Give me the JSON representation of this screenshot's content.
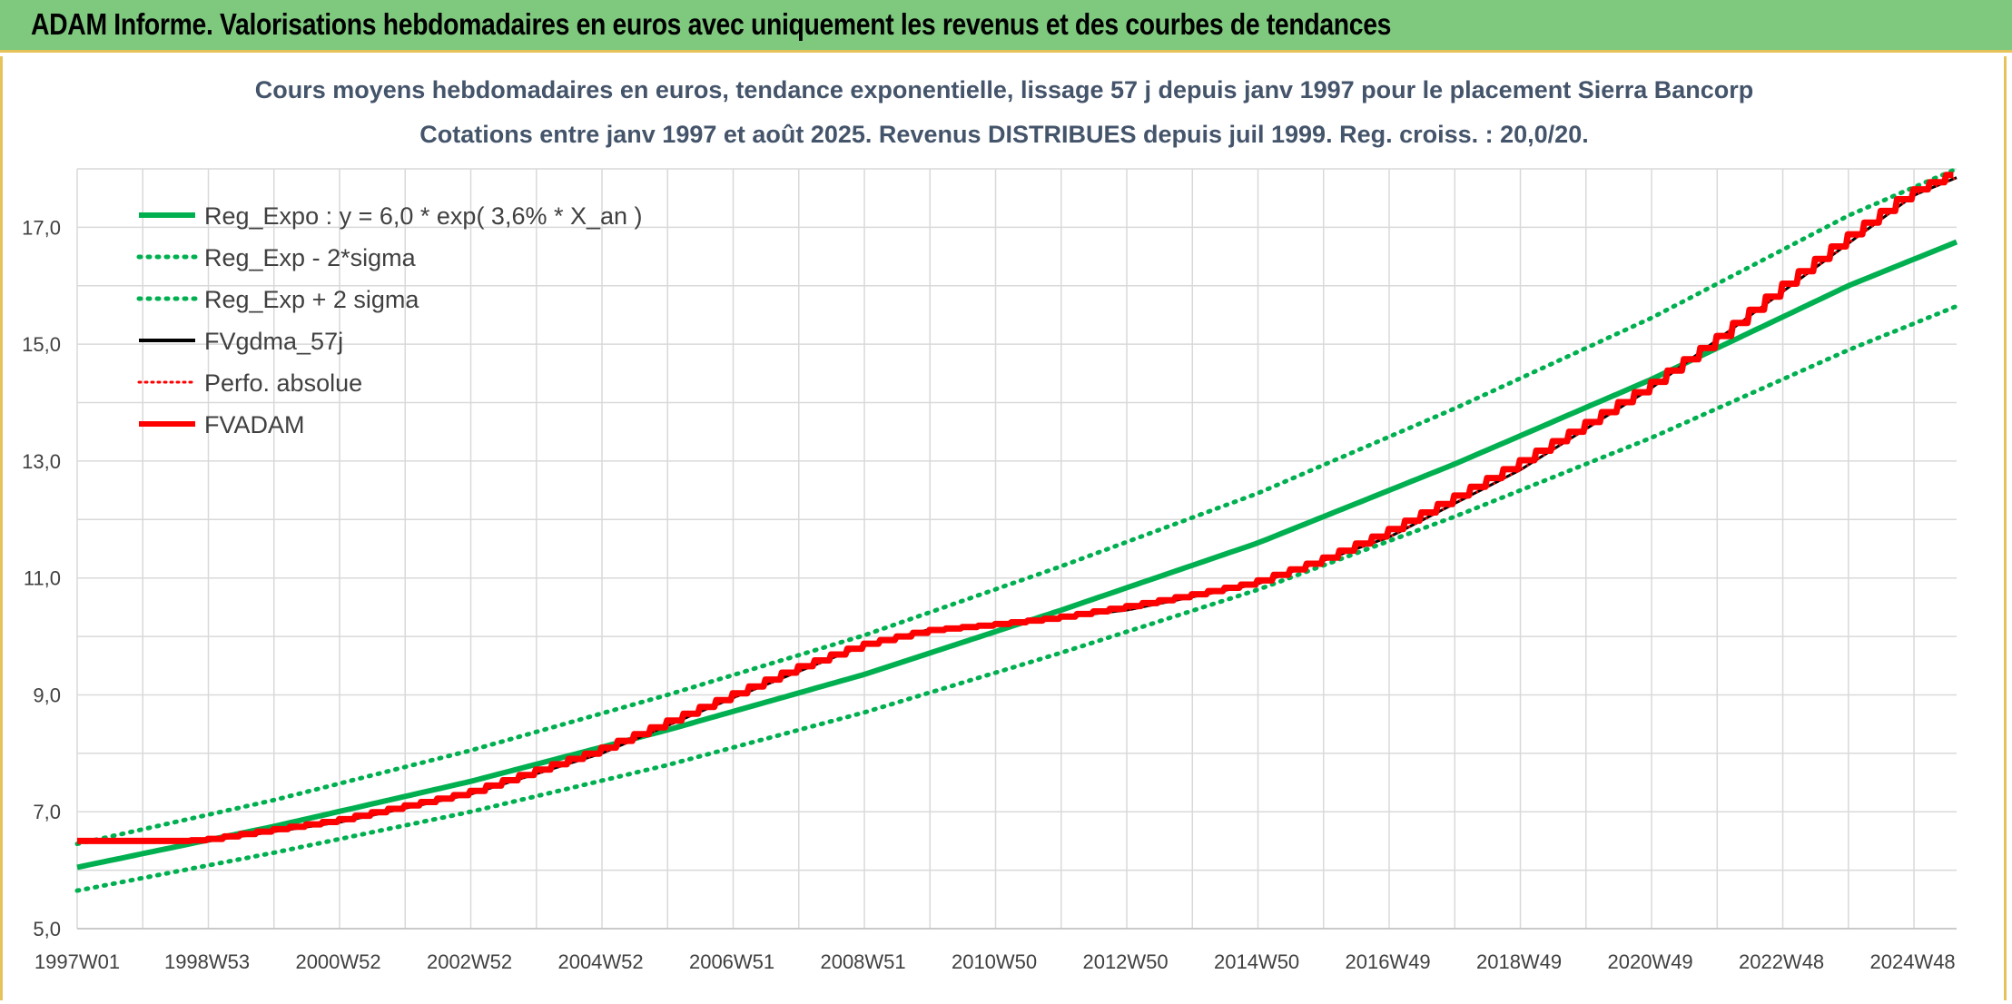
{
  "header": {
    "title": "ADAM Informe. Valorisations hebdomadaires en euros avec uniquement les revenus et des courbes de tendances"
  },
  "colors": {
    "banner": "#7fc97f",
    "green": "#00b050",
    "red": "#ff0000",
    "black": "#000000"
  },
  "chart_data": {
    "type": "line",
    "title": "Cours moyens hebdomadaires en euros, tendance exponentielle, lissage 57 j depuis janv 1997 pour le placement Sierra Bancorp",
    "subtitle": "Cotations entre janv 1997 et août 2025. Revenus DISTRIBUES depuis juil 1999. Reg. croiss. : 20,0/20.",
    "xlabel": "",
    "ylabel": "",
    "x_start_year": 1997.0,
    "x_end_year": 2025.65,
    "ylim": [
      5.0,
      18.0
    ],
    "y_ticks": [
      "5,0",
      "7,0",
      "9,0",
      "11,0",
      "13,0",
      "15,0",
      "17,0"
    ],
    "x_tick_labels": [
      "1997W01",
      "1998W53",
      "2000W52",
      "2002W52",
      "2004W52",
      "2006W51",
      "2008W51",
      "2010W50",
      "2012W50",
      "2014W50",
      "2016W49",
      "2018W49",
      "2020W49",
      "2022W48",
      "2024W48"
    ],
    "grid": true,
    "legend_position": "top-left",
    "series": [
      {
        "name": "Reg_Expo : y = 6,0 * exp( 3,6% *  X_an )",
        "style": "solid",
        "color": "#00b050",
        "x": [
          1997.0,
          2000.0,
          2003.0,
          2006.0,
          2009.0,
          2012.0,
          2015.0,
          2018.0,
          2021.0,
          2024.0,
          2025.65
        ],
        "values": [
          6.05,
          6.75,
          7.52,
          8.4,
          9.35,
          10.45,
          11.6,
          12.95,
          14.4,
          16.0,
          16.75
        ]
      },
      {
        "name": "Reg_Exp - 2*sigma",
        "style": "dotted",
        "color": "#00b050",
        "x": [
          1997.0,
          2000.0,
          2003.0,
          2006.0,
          2009.0,
          2012.0,
          2015.0,
          2018.0,
          2021.0,
          2024.0,
          2025.65
        ],
        "values": [
          5.65,
          6.3,
          7.0,
          7.8,
          8.7,
          9.72,
          10.8,
          12.05,
          13.4,
          14.9,
          15.65
        ]
      },
      {
        "name": "Reg_Exp + 2 sigma",
        "style": "dotted",
        "color": "#00b050",
        "x": [
          1997.0,
          2000.0,
          2003.0,
          2006.0,
          2009.0,
          2012.0,
          2015.0,
          2018.0,
          2021.0,
          2024.0,
          2025.65
        ],
        "values": [
          6.45,
          7.2,
          8.05,
          9.0,
          10.02,
          11.2,
          12.45,
          13.9,
          15.45,
          17.2,
          18.0
        ]
      },
      {
        "name": "FVgdma_57j",
        "style": "solid",
        "color": "#000000",
        "x": [
          1997.0,
          1999.0,
          2001.0,
          2003.0,
          2005.0,
          2007.0,
          2009.0,
          2010.0,
          2011.0,
          2013.0,
          2015.0,
          2017.0,
          2019.0,
          2021.0,
          2023.0,
          2025.0,
          2025.65
        ],
        "values": [
          6.5,
          6.5,
          6.82,
          7.3,
          8.0,
          8.95,
          9.85,
          10.12,
          10.2,
          10.45,
          10.9,
          11.7,
          12.85,
          14.25,
          15.9,
          17.55,
          17.85
        ]
      },
      {
        "name": "Perfo. absolue",
        "style": "dotted",
        "color": "#ff0000",
        "x": [
          1997.0,
          1999.0,
          2001.0,
          2003.0,
          2005.0,
          2007.0,
          2009.0,
          2010.0,
          2011.0,
          2013.0,
          2015.0,
          2017.0,
          2019.0,
          2021.0,
          2023.0,
          2025.0,
          2025.65
        ],
        "values": [
          6.5,
          6.5,
          6.82,
          7.3,
          8.0,
          8.95,
          9.85,
          10.12,
          10.2,
          10.45,
          10.9,
          11.7,
          12.85,
          14.25,
          15.9,
          17.55,
          17.85
        ]
      },
      {
        "name": "FVADAM",
        "style": "solid",
        "color": "#ff0000",
        "x": [
          1997.0,
          1998.6,
          1999.0,
          2001.0,
          2003.0,
          2005.0,
          2007.0,
          2008.0,
          2009.0,
          2010.0,
          2011.0,
          2012.0,
          2013.0,
          2014.0,
          2015.0,
          2016.0,
          2017.0,
          2018.0,
          2019.0,
          2020.0,
          2021.0,
          2022.0,
          2023.0,
          2024.0,
          2025.0,
          2025.65
        ],
        "values": [
          6.5,
          6.5,
          6.52,
          6.85,
          7.32,
          8.05,
          8.98,
          9.45,
          9.85,
          10.1,
          10.2,
          10.32,
          10.5,
          10.7,
          10.92,
          11.3,
          11.78,
          12.35,
          12.95,
          13.6,
          14.28,
          15.05,
          15.95,
          16.8,
          17.6,
          17.92
        ]
      }
    ]
  }
}
